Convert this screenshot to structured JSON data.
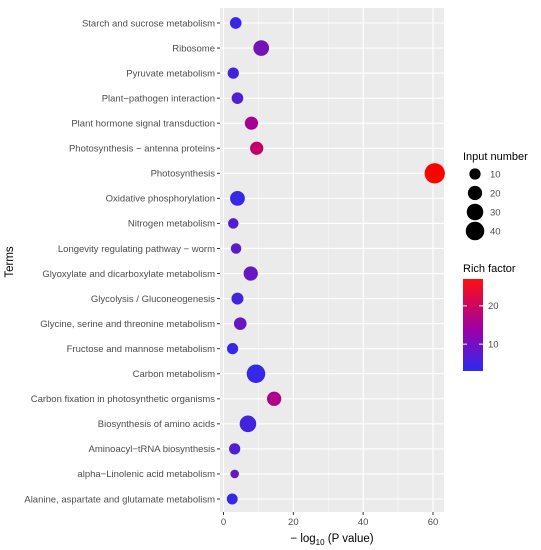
{
  "chart_data": {
    "type": "scatter",
    "xlabel_prefix": "− log",
    "xlabel_sub": "10",
    "xlabel_suffix": " (P value)",
    "ylabel": "Terms",
    "xlim": [
      0,
      63
    ],
    "x_ticks": [
      0,
      20,
      40,
      60
    ],
    "grid": true,
    "colors": {
      "panel": "#ebebeb",
      "grid": "#ffffff",
      "low": "#2b2bf0",
      "mid": "#b0008c",
      "high": "#ff0000"
    },
    "categories": [
      "Starch and sucrose metabolism",
      "Ribosome",
      "Pyruvate metabolism",
      "Plant−pathogen interaction",
      "Plant hormone signal transduction",
      "Photosynthesis − antenna proteins",
      "Photosynthesis",
      "Oxidative phosphorylation",
      "Nitrogen metabolism",
      "Longevity regulating pathway − worm",
      "Glyoxylate and dicarboxylate metabolism",
      "Glycolysis / Gluconeogenesis",
      "Glycine, serine and threonine metabolism",
      "Fructose and mannose metabolism",
      "Carbon metabolism",
      "Carbon fixation in photosynthetic organisms",
      "Biosynthesis of amino acids",
      "Aminoacyl−tRNA biosynthesis",
      "alpha−Linolenic acid metabolism",
      "Alanine, aspartate and glutamate metabolism"
    ],
    "points": [
      {
        "term": "Starch and sucrose metabolism",
        "x": 3.5,
        "input": 11,
        "rich": 4
      },
      {
        "term": "Ribosome",
        "x": 10.8,
        "input": 26,
        "rich": 9
      },
      {
        "term": "Pyruvate metabolism",
        "x": 2.8,
        "input": 10,
        "rich": 5
      },
      {
        "term": "Plant−pathogen interaction",
        "x": 4.0,
        "input": 11,
        "rich": 6
      },
      {
        "term": "Plant hormone signal transduction",
        "x": 8.0,
        "input": 16,
        "rich": 13
      },
      {
        "term": "Photosynthesis − antenna proteins",
        "x": 9.5,
        "input": 16,
        "rich": 17
      },
      {
        "term": "Photosynthesis",
        "x": 60.5,
        "input": 50,
        "rich": 27
      },
      {
        "term": "Oxidative phosphorylation",
        "x": 4.0,
        "input": 22,
        "rich": 4
      },
      {
        "term": "Nitrogen metabolism",
        "x": 2.8,
        "input": 8,
        "rich": 6
      },
      {
        "term": "Longevity regulating pathway − worm",
        "x": 3.6,
        "input": 8,
        "rich": 7
      },
      {
        "term": "Glyoxylate and dicarboxylate metabolism",
        "x": 7.8,
        "input": 20,
        "rich": 8
      },
      {
        "term": "Glycolysis / Gluconeogenesis",
        "x": 4.0,
        "input": 12,
        "rich": 5
      },
      {
        "term": "Glycine, serine and threonine metabolism",
        "x": 4.8,
        "input": 14,
        "rich": 8
      },
      {
        "term": "Fructose and mannose metabolism",
        "x": 2.6,
        "input": 10,
        "rich": 4
      },
      {
        "term": "Carbon metabolism",
        "x": 9.3,
        "input": 40,
        "rich": 4
      },
      {
        "term": "Carbon fixation in photosynthetic organisms",
        "x": 14.5,
        "input": 20,
        "rich": 14
      },
      {
        "term": "Biosynthesis of amino acids",
        "x": 7.0,
        "input": 30,
        "rich": 5
      },
      {
        "term": "Aminoacyl−tRNA biosynthesis",
        "x": 3.2,
        "input": 10,
        "rich": 6
      },
      {
        "term": "alpha−Linolenic acid metabolism",
        "x": 3.2,
        "input": 4,
        "rich": 8
      },
      {
        "term": "Alanine, aspartate and glutamate metabolism",
        "x": 2.5,
        "input": 9,
        "rich": 4
      }
    ],
    "legend_size": {
      "title": "Input number",
      "values": [
        10,
        20,
        30,
        40
      ]
    },
    "legend_color": {
      "title": "Rich factor",
      "range": [
        3,
        27
      ],
      "ticks": [
        10,
        20
      ]
    }
  }
}
